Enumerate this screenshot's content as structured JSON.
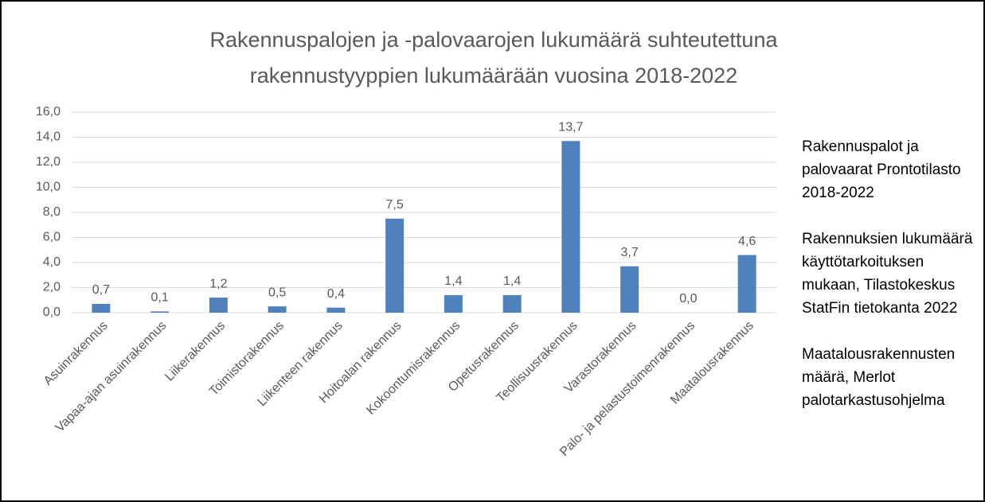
{
  "chart_data": {
    "type": "bar",
    "title": [
      "Rakennuspalojen ja -palovaarojen lukumäärä suhteutettuna",
      "rakennustyyppien lukumäärään vuosina 2018-2022"
    ],
    "categories": [
      "Asuinrakennus",
      "Vapaa-ajan asuinrakennus",
      "Liikerakennus",
      "Toimistorakennus",
      "Liikenteen rakennus",
      "Hoitoalan rakennus",
      "Kokoontumisrakennus",
      "Opetusrakennus",
      "Teollisuusrakennus",
      "Varastorakennus",
      "Palo- ja pelastustoimenrakennus",
      "Maatalousrakennus"
    ],
    "values": [
      0.7,
      0.1,
      1.2,
      0.5,
      0.4,
      7.5,
      1.4,
      1.4,
      13.7,
      3.7,
      0.0,
      4.6
    ],
    "value_labels": [
      "0,7",
      "0,1",
      "1,2",
      "0,5",
      "0,4",
      "7,5",
      "1,4",
      "1,4",
      "13,7",
      "3,7",
      "0,0",
      "4,6"
    ],
    "color": "#4f81bd",
    "ylim": [
      0,
      16
    ],
    "yticks": [
      {
        "value": 0,
        "label": "0,0"
      },
      {
        "value": 2,
        "label": "2,0"
      },
      {
        "value": 4,
        "label": "4,0"
      },
      {
        "value": 6,
        "label": "6,0"
      },
      {
        "value": 8,
        "label": "8,0"
      },
      {
        "value": 10,
        "label": "10,0"
      },
      {
        "value": 12,
        "label": "12,0"
      },
      {
        "value": 14,
        "label": "14,0"
      },
      {
        "value": 16,
        "label": "16,0"
      }
    ],
    "grid": true,
    "annotations": [
      "Rakennuspalot ja palovaarat Prontotilasto 2018-2022",
      "Rakennuksien lukumäärä käyttötarkoituksen mukaan, Tilastokeskus StatFin tietokanta 2022",
      "Maatalousrakennusten määrä, Merlot palotarkastusohjelma"
    ]
  }
}
